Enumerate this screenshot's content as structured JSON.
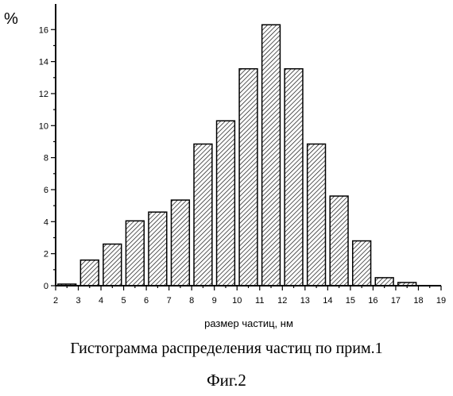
{
  "chart_data": {
    "type": "bar",
    "unit_label": "%",
    "xlabel": "размер частиц, нм",
    "ylabel": "",
    "xlim": [
      2,
      19
    ],
    "ylim": [
      0,
      17.6
    ],
    "x_ticks": [
      "2",
      "3",
      "4",
      "5",
      "6",
      "7",
      "8",
      "9",
      "10",
      "11",
      "12",
      "13",
      "14",
      "15",
      "16",
      "17",
      "18",
      "19"
    ],
    "y_ticks": [
      "0",
      "2",
      "4",
      "6",
      "8",
      "10",
      "12",
      "14",
      "16"
    ],
    "bin_width": 0.8,
    "x": [
      2.5,
      3.5,
      4.5,
      5.5,
      6.5,
      7.5,
      8.5,
      9.5,
      10.5,
      11.5,
      12.5,
      13.5,
      14.5,
      15.5,
      16.5,
      17.5
    ],
    "values": [
      0.1,
      1.6,
      2.6,
      4.05,
      4.6,
      5.35,
      8.85,
      10.3,
      13.55,
      16.3,
      13.55,
      8.85,
      5.6,
      2.8,
      0.5,
      0.2
    ],
    "bar_fill": "hatched",
    "grid": false
  },
  "caption": {
    "title": "Гистограмма распределения частиц по прим.1",
    "figure": "Фиг.2"
  }
}
